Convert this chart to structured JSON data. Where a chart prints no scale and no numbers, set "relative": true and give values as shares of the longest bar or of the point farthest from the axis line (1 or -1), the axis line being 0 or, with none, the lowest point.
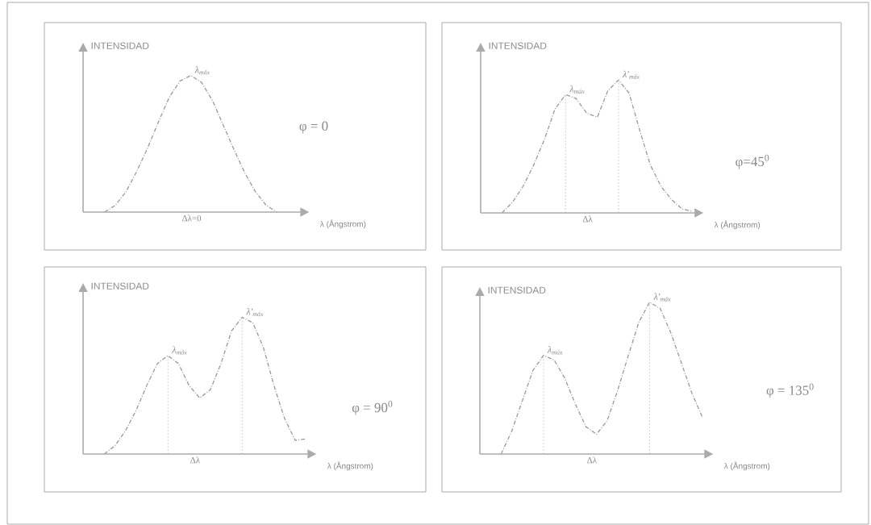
{
  "chart_data": [
    {
      "type": "line",
      "relative": true,
      "xlabel": "λ (Ångstrom)",
      "ylabel": "INTENSIDAD",
      "color": "#999999",
      "line_style": "dashed",
      "marker": "none",
      "categories": [
        null,
        null,
        null,
        null,
        null,
        null,
        null,
        null,
        null,
        null,
        null,
        null,
        null,
        null,
        null,
        null,
        null,
        null,
        null,
        null,
        null
      ],
      "values": [
        null,
        null,
        0,
        0.05,
        0.15,
        0.3,
        0.47,
        0.66,
        0.84,
        0.96,
        1.0,
        0.95,
        0.82,
        0.64,
        0.46,
        0.29,
        0.15,
        0.05,
        0,
        null,
        null
      ],
      "annotations": [
        "λ$_{máx}$",
        "φ = 0",
        "Δλ=0"
      ]
    },
    {
      "type": "line",
      "relative": true,
      "xlabel": "λ (Ångstrom)",
      "ylabel": "INTENSIDAD",
      "color": "#999999",
      "line_style": "dashed",
      "marker": "none",
      "categories": [
        null,
        null,
        null,
        null,
        null,
        null,
        null,
        null,
        null,
        null,
        null,
        null,
        null,
        null,
        null,
        null,
        null,
        null,
        null,
        null,
        null
      ],
      "values": [
        null,
        null,
        0,
        0.08,
        0.2,
        0.36,
        0.55,
        0.78,
        0.89,
        0.86,
        0.75,
        0.72,
        0.92,
        1.0,
        0.9,
        0.62,
        0.36,
        0.2,
        0.1,
        0.03,
        0.01
      ],
      "annotations": [
        "λ$_{máx}$",
        "λ′$_{máx}$",
        "φ=45$^{0}$",
        "Δλ"
      ]
    },
    {
      "type": "line",
      "relative": true,
      "xlabel": "λ (Ångstrom)",
      "ylabel": "INTENSIDAD",
      "color": "#999999",
      "line_style": "dashed",
      "marker": "none",
      "categories": [
        null,
        null,
        null,
        null,
        null,
        null,
        null,
        null,
        null,
        null,
        null,
        null,
        null,
        null,
        null,
        null,
        null,
        null,
        null,
        null,
        null,
        null
      ],
      "values": [
        null,
        null,
        0,
        0.06,
        0.17,
        0.32,
        0.5,
        0.66,
        0.72,
        0.66,
        0.5,
        0.41,
        0.47,
        0.66,
        0.9,
        1.0,
        0.96,
        0.78,
        0.5,
        0.26,
        0.1,
        0.11
      ],
      "annotations": [
        "λ$_{máx}$",
        "λ′$_{máx}$",
        "φ = 90$^{0}$",
        "Δλ"
      ]
    },
    {
      "type": "line",
      "relative": true,
      "xlabel": "λ (Ångstrom)",
      "ylabel": "INTENSIDAD",
      "color": "#999999",
      "line_style": "dashed",
      "marker": "none",
      "categories": [
        null,
        null,
        null,
        null,
        null,
        null,
        null,
        null,
        null,
        null,
        null,
        null,
        null,
        null,
        null,
        null,
        null,
        null,
        null,
        null,
        null,
        null
      ],
      "values": [
        null,
        null,
        0,
        0.15,
        0.35,
        0.55,
        0.65,
        0.62,
        0.5,
        0.33,
        0.18,
        0.13,
        0.22,
        0.42,
        0.65,
        0.87,
        1.0,
        0.96,
        0.8,
        0.6,
        0.4,
        0.24
      ],
      "annotations": [
        "λ$_{máx}$",
        "λ′$_{máx}$",
        "φ = 135$^{0}$",
        "Δλ"
      ]
    }
  ]
}
